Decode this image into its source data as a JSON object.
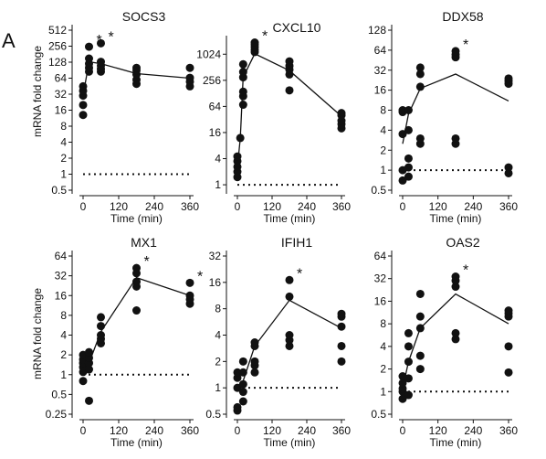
{
  "figure": {
    "panel_letter": "A",
    "y_axis_label": "mRNA fold change",
    "x_axis_label": "Time (min)"
  },
  "chart_data": [
    {
      "type": "scatter",
      "title": "SOCS3",
      "xlabel": "Time (min)",
      "ylabel": "mRNA fold change",
      "y_scale": "log2",
      "xlim": [
        0,
        360
      ],
      "ylim": [
        0.5,
        512
      ],
      "x_ticks": [
        0,
        120,
        240,
        360
      ],
      "y_ticks": [
        {
          "value": 0.5,
          "label": "0.5"
        },
        {
          "value": 1,
          "label": "1"
        },
        {
          "value": 2,
          "label": "2"
        },
        {
          "value": 4,
          "label": "4"
        },
        {
          "value": 8,
          "label": "8"
        },
        {
          "value": 16,
          "label": "16"
        },
        {
          "value": 32,
          "label": "32"
        },
        {
          "value": 64,
          "label": "64"
        },
        {
          "value": 128,
          "label": "128"
        },
        {
          "value": 256,
          "label": "256"
        },
        {
          "value": 512,
          "label": "512"
        }
      ],
      "baseline": 1,
      "points": [
        {
          "x": 0,
          "y": 13
        },
        {
          "x": 0,
          "y": 20
        },
        {
          "x": 0,
          "y": 30
        },
        {
          "x": 0,
          "y": 37
        },
        {
          "x": 0,
          "y": 45
        },
        {
          "x": 20,
          "y": 85
        },
        {
          "x": 20,
          "y": 100
        },
        {
          "x": 20,
          "y": 120
        },
        {
          "x": 20,
          "y": 150
        },
        {
          "x": 20,
          "y": 250
        },
        {
          "x": 60,
          "y": 85
        },
        {
          "x": 60,
          "y": 95
        },
        {
          "x": 60,
          "y": 110
        },
        {
          "x": 60,
          "y": 130
        },
        {
          "x": 60,
          "y": 290
        },
        {
          "x": 180,
          "y": 50
        },
        {
          "x": 180,
          "y": 60
        },
        {
          "x": 180,
          "y": 75
        },
        {
          "x": 180,
          "y": 90
        },
        {
          "x": 180,
          "y": 100
        },
        {
          "x": 360,
          "y": 45
        },
        {
          "x": 360,
          "y": 55
        },
        {
          "x": 360,
          "y": 65
        },
        {
          "x": 360,
          "y": 100
        }
      ],
      "mean_line": [
        {
          "x": 0,
          "y": 30
        },
        {
          "x": 20,
          "y": 130
        },
        {
          "x": 60,
          "y": 120
        },
        {
          "x": 180,
          "y": 78
        },
        {
          "x": 360,
          "y": 64
        }
      ],
      "stars": [
        {
          "x": 20,
          "y": 250,
          "label": "*"
        },
        {
          "x": 60,
          "y": 290,
          "label": "*"
        }
      ]
    },
    {
      "type": "scatter",
      "title": "CXCL10",
      "xlabel": "Time (min)",
      "ylabel": "",
      "y_scale": "log2",
      "xlim": [
        0,
        360
      ],
      "ylim": [
        0.75,
        2048
      ],
      "x_ticks": [
        0,
        120,
        240,
        360
      ],
      "y_ticks": [
        {
          "value": 1,
          "label": "1"
        },
        {
          "value": 4,
          "label": "4"
        },
        {
          "value": 16,
          "label": "16"
        },
        {
          "value": 64,
          "label": "64"
        },
        {
          "value": 256,
          "label": "256"
        },
        {
          "value": 1024,
          "label": "1024"
        }
      ],
      "baseline": 1,
      "points": [
        {
          "x": 0,
          "y": 1.5
        },
        {
          "x": 0,
          "y": 2
        },
        {
          "x": 0,
          "y": 2.6
        },
        {
          "x": 0,
          "y": 3.5
        },
        {
          "x": 0,
          "y": 4.5
        },
        {
          "x": 10,
          "y": 12
        },
        {
          "x": 20,
          "y": 70
        },
        {
          "x": 20,
          "y": 110
        },
        {
          "x": 20,
          "y": 140
        },
        {
          "x": 20,
          "y": 300
        },
        {
          "x": 20,
          "y": 400
        },
        {
          "x": 20,
          "y": 600
        },
        {
          "x": 60,
          "y": 1150
        },
        {
          "x": 60,
          "y": 1300
        },
        {
          "x": 60,
          "y": 1500
        },
        {
          "x": 60,
          "y": 1700
        },
        {
          "x": 60,
          "y": 1900
        },
        {
          "x": 180,
          "y": 150
        },
        {
          "x": 180,
          "y": 350
        },
        {
          "x": 180,
          "y": 450
        },
        {
          "x": 180,
          "y": 550
        },
        {
          "x": 180,
          "y": 700
        },
        {
          "x": 360,
          "y": 20
        },
        {
          "x": 360,
          "y": 25
        },
        {
          "x": 360,
          "y": 30
        },
        {
          "x": 360,
          "y": 40
        },
        {
          "x": 360,
          "y": 45
        }
      ],
      "mean_line": [
        {
          "x": 0,
          "y": 2.5
        },
        {
          "x": 10,
          "y": 12
        },
        {
          "x": 20,
          "y": 300
        },
        {
          "x": 60,
          "y": 1050
        },
        {
          "x": 180,
          "y": 430
        },
        {
          "x": 360,
          "y": 38
        }
      ],
      "stars": [
        {
          "x": 60,
          "y": 1900,
          "label": "*"
        }
      ]
    },
    {
      "type": "scatter",
      "title": "DDX58",
      "xlabel": "Time (min)",
      "ylabel": "",
      "y_scale": "log2",
      "xlim": [
        0,
        360
      ],
      "ylim": [
        0.5,
        128
      ],
      "x_ticks": [
        0,
        120,
        240,
        360
      ],
      "y_ticks": [
        {
          "value": 0.5,
          "label": "0.5"
        },
        {
          "value": 1,
          "label": "1"
        },
        {
          "value": 2,
          "label": "2"
        },
        {
          "value": 4,
          "label": "4"
        },
        {
          "value": 8,
          "label": "8"
        },
        {
          "value": 16,
          "label": "16"
        },
        {
          "value": 32,
          "label": "32"
        },
        {
          "value": 64,
          "label": "64"
        },
        {
          "value": 128,
          "label": "128"
        }
      ],
      "baseline": 1,
      "points": [
        {
          "x": 0,
          "y": 0.7
        },
        {
          "x": 0,
          "y": 1
        },
        {
          "x": 0,
          "y": 3.5
        },
        {
          "x": 0,
          "y": 7.5
        },
        {
          "x": 0,
          "y": 8
        },
        {
          "x": 20,
          "y": 0.8
        },
        {
          "x": 20,
          "y": 1.1
        },
        {
          "x": 20,
          "y": 1.5
        },
        {
          "x": 20,
          "y": 4
        },
        {
          "x": 20,
          "y": 8
        },
        {
          "x": 60,
          "y": 2.5
        },
        {
          "x": 60,
          "y": 3
        },
        {
          "x": 60,
          "y": 18
        },
        {
          "x": 60,
          "y": 28
        },
        {
          "x": 60,
          "y": 35
        },
        {
          "x": 180,
          "y": 2.5
        },
        {
          "x": 180,
          "y": 3
        },
        {
          "x": 180,
          "y": 50
        },
        {
          "x": 180,
          "y": 55
        },
        {
          "x": 180,
          "y": 62
        },
        {
          "x": 360,
          "y": 0.9
        },
        {
          "x": 360,
          "y": 1.1
        },
        {
          "x": 360,
          "y": 20
        },
        {
          "x": 360,
          "y": 22
        },
        {
          "x": 360,
          "y": 24
        }
      ],
      "mean_line": [
        {
          "x": 0,
          "y": 2.5
        },
        {
          "x": 20,
          "y": 7
        },
        {
          "x": 60,
          "y": 17
        },
        {
          "x": 180,
          "y": 28
        },
        {
          "x": 360,
          "y": 11
        }
      ],
      "stars": [
        {
          "x": 180,
          "y": 62,
          "label": "*"
        }
      ]
    },
    {
      "type": "scatter",
      "title": "MX1",
      "xlabel": "Time (min)",
      "ylabel": "mRNA fold change",
      "y_scale": "log2",
      "xlim": [
        0,
        360
      ],
      "ylim": [
        0.25,
        64
      ],
      "x_ticks": [
        0,
        120,
        240,
        360
      ],
      "y_ticks": [
        {
          "value": 0.25,
          "label": "0.25"
        },
        {
          "value": 0.5,
          "label": "0.5"
        },
        {
          "value": 1,
          "label": "1"
        },
        {
          "value": 2,
          "label": "2"
        },
        {
          "value": 4,
          "label": "4"
        },
        {
          "value": 8,
          "label": "8"
        },
        {
          "value": 16,
          "label": "16"
        },
        {
          "value": 32,
          "label": "32"
        },
        {
          "value": 64,
          "label": "64"
        }
      ],
      "baseline": 1,
      "points": [
        {
          "x": 0,
          "y": 0.8
        },
        {
          "x": 0,
          "y": 1.1
        },
        {
          "x": 0,
          "y": 1.3
        },
        {
          "x": 0,
          "y": 1.5
        },
        {
          "x": 0,
          "y": 1.7
        },
        {
          "x": 0,
          "y": 2
        },
        {
          "x": 20,
          "y": 0.4
        },
        {
          "x": 20,
          "y": 1.2
        },
        {
          "x": 20,
          "y": 1.5
        },
        {
          "x": 20,
          "y": 1.8
        },
        {
          "x": 20,
          "y": 2.2
        },
        {
          "x": 60,
          "y": 3
        },
        {
          "x": 60,
          "y": 3.5
        },
        {
          "x": 60,
          "y": 4
        },
        {
          "x": 60,
          "y": 5.5
        },
        {
          "x": 60,
          "y": 7.5
        },
        {
          "x": 180,
          "y": 9.5
        },
        {
          "x": 180,
          "y": 22
        },
        {
          "x": 180,
          "y": 26
        },
        {
          "x": 180,
          "y": 35
        },
        {
          "x": 180,
          "y": 42
        },
        {
          "x": 360,
          "y": 12
        },
        {
          "x": 360,
          "y": 14
        },
        {
          "x": 360,
          "y": 16
        },
        {
          "x": 360,
          "y": 25
        }
      ],
      "mean_line": [
        {
          "x": 0,
          "y": 1.3
        },
        {
          "x": 20,
          "y": 1.5
        },
        {
          "x": 60,
          "y": 4.5
        },
        {
          "x": 180,
          "y": 30
        },
        {
          "x": 360,
          "y": 16
        }
      ],
      "stars": [
        {
          "x": 180,
          "y": 42,
          "label": "*"
        },
        {
          "x": 360,
          "y": 25,
          "label": "*"
        }
      ]
    },
    {
      "type": "scatter",
      "title": "IFIH1",
      "xlabel": "Time (min)",
      "ylabel": "",
      "y_scale": "log2",
      "xlim": [
        0,
        360
      ],
      "ylim": [
        0.5,
        32
      ],
      "x_ticks": [
        0,
        120,
        240,
        360
      ],
      "y_ticks": [
        {
          "value": 0.5,
          "label": "0.5"
        },
        {
          "value": 1,
          "label": "1"
        },
        {
          "value": 2,
          "label": "2"
        },
        {
          "value": 4,
          "label": "4"
        },
        {
          "value": 8,
          "label": "8"
        },
        {
          "value": 16,
          "label": "16"
        },
        {
          "value": 32,
          "label": "32"
        }
      ],
      "baseline": 1,
      "points": [
        {
          "x": 0,
          "y": 0.55
        },
        {
          "x": 0,
          "y": 0.6
        },
        {
          "x": 0,
          "y": 1
        },
        {
          "x": 0,
          "y": 1.3
        },
        {
          "x": 0,
          "y": 1.5
        },
        {
          "x": 20,
          "y": 0.7
        },
        {
          "x": 20,
          "y": 0.9
        },
        {
          "x": 20,
          "y": 1.1
        },
        {
          "x": 20,
          "y": 1.5
        },
        {
          "x": 20,
          "y": 2
        },
        {
          "x": 60,
          "y": 1.5
        },
        {
          "x": 60,
          "y": 1.8
        },
        {
          "x": 60,
          "y": 2
        },
        {
          "x": 60,
          "y": 3
        },
        {
          "x": 60,
          "y": 3.3
        },
        {
          "x": 180,
          "y": 3
        },
        {
          "x": 180,
          "y": 3.5
        },
        {
          "x": 180,
          "y": 4
        },
        {
          "x": 180,
          "y": 11
        },
        {
          "x": 180,
          "y": 17
        },
        {
          "x": 360,
          "y": 2
        },
        {
          "x": 360,
          "y": 3
        },
        {
          "x": 360,
          "y": 5
        },
        {
          "x": 360,
          "y": 6.5
        },
        {
          "x": 360,
          "y": 7
        }
      ],
      "mean_line": [
        {
          "x": 0,
          "y": 0.9
        },
        {
          "x": 20,
          "y": 1.2
        },
        {
          "x": 60,
          "y": 3
        },
        {
          "x": 180,
          "y": 10
        },
        {
          "x": 360,
          "y": 4.8
        }
      ],
      "stars": [
        {
          "x": 180,
          "y": 17,
          "label": "*"
        }
      ]
    },
    {
      "type": "scatter",
      "title": "OAS2",
      "xlabel": "Time (min)",
      "ylabel": "",
      "y_scale": "log2",
      "xlim": [
        0,
        360
      ],
      "ylim": [
        0.5,
        64
      ],
      "x_ticks": [
        0,
        120,
        240,
        360
      ],
      "y_ticks": [
        {
          "value": 0.5,
          "label": "0.5"
        },
        {
          "value": 1,
          "label": "1"
        },
        {
          "value": 2,
          "label": "2"
        },
        {
          "value": 4,
          "label": "4"
        },
        {
          "value": 8,
          "label": "8"
        },
        {
          "value": 16,
          "label": "16"
        },
        {
          "value": 32,
          "label": "32"
        },
        {
          "value": 64,
          "label": "64"
        }
      ],
      "baseline": 1,
      "points": [
        {
          "x": 0,
          "y": 0.8
        },
        {
          "x": 0,
          "y": 1
        },
        {
          "x": 0,
          "y": 1.1
        },
        {
          "x": 0,
          "y": 1.3
        },
        {
          "x": 0,
          "y": 1.6
        },
        {
          "x": 20,
          "y": 0.9
        },
        {
          "x": 20,
          "y": 1.5
        },
        {
          "x": 20,
          "y": 2.5
        },
        {
          "x": 20,
          "y": 4
        },
        {
          "x": 20,
          "y": 6
        },
        {
          "x": 60,
          "y": 2
        },
        {
          "x": 60,
          "y": 3
        },
        {
          "x": 60,
          "y": 7
        },
        {
          "x": 60,
          "y": 10
        },
        {
          "x": 60,
          "y": 20
        },
        {
          "x": 180,
          "y": 5
        },
        {
          "x": 180,
          "y": 6
        },
        {
          "x": 180,
          "y": 25
        },
        {
          "x": 180,
          "y": 30
        },
        {
          "x": 180,
          "y": 34
        },
        {
          "x": 360,
          "y": 1.8
        },
        {
          "x": 360,
          "y": 4
        },
        {
          "x": 360,
          "y": 10
        },
        {
          "x": 360,
          "y": 11
        },
        {
          "x": 360,
          "y": 12
        }
      ],
      "mean_line": [
        {
          "x": 0,
          "y": 1.1
        },
        {
          "x": 20,
          "y": 2.5
        },
        {
          "x": 60,
          "y": 7
        },
        {
          "x": 180,
          "y": 20
        },
        {
          "x": 360,
          "y": 8
        }
      ],
      "stars": [
        {
          "x": 180,
          "y": 34,
          "label": "*"
        }
      ]
    }
  ]
}
